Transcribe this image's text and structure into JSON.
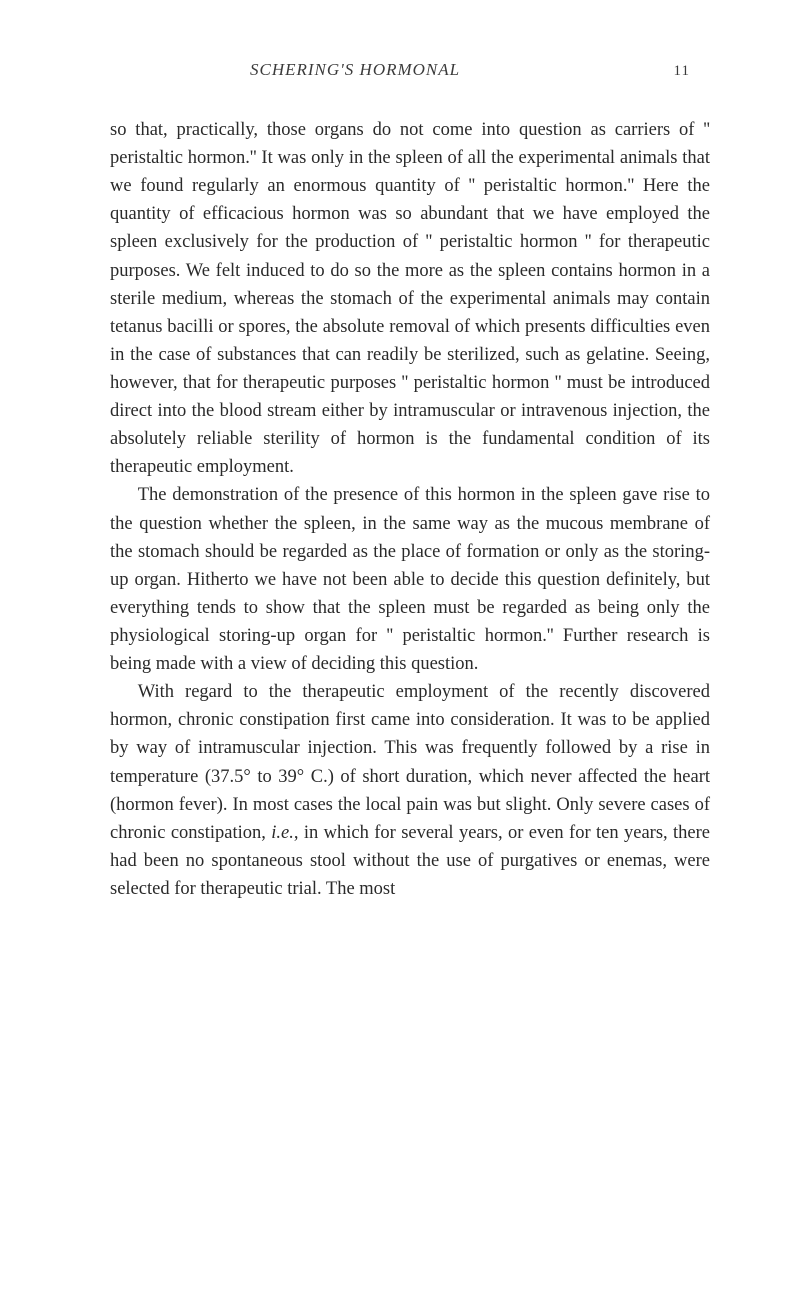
{
  "header": {
    "running_title": "SCHERING'S HORMONAL",
    "page_number": "11"
  },
  "paragraphs": {
    "p1": "so that, practically, those organs do not come into question as carriers of '' peristaltic hormon.'' It was only in the spleen of all the experimental animals that we found regularly an enormous quantity of '' peristaltic hormon.'' Here the quantity of efficacious hormon was so abundant that we have employed the spleen exclusively for the production of '' peristaltic hormon '' for therapeutic purposes. We felt induced to do so the more as the spleen contains hormon in a sterile medium, whereas the stomach of the experimental animals may contain tetanus bacilli or spores, the absolute removal of which presents difficulties even in the case of substances that can readily be sterilized, such as gelatine. Seeing, however, that for therapeutic purposes '' peristaltic hormon '' must be introduced direct into the blood stream either by intramuscular or intravenous injection, the absolutely reliable sterility of hormon is the fundamental condition of its therapeutic employment.",
    "p2": "The demonstration of the presence of this hormon in the spleen gave rise to the question whether the spleen, in the same way as the mucous membrane of the stomach should be regarded as the place of formation or only as the storing-up organ. Hitherto we have not been able to decide this question definitely, but everything tends to show that the spleen must be regarded as being only the physiological storing-up organ for '' peristaltic hormon.'' Further research is being made with a view of deciding this question.",
    "p3_part1": "With regard to the therapeutic employment of the recently discovered hormon, chronic constipation first came into consideration. It was to be applied by way of intramuscular injection. This was frequently followed by a rise in temperature (37.5° to 39° C.) of short duration, which never affected the heart (hormon fever). In most cases the local pain was but slight. Only severe cases of chronic constipation, ",
    "p3_italic": "i.e.",
    "p3_part2": ", in which for several years, or even for ten years, there had been no spontaneous stool without the use of purgatives or enemas, were selected for therapeutic trial. The most"
  }
}
